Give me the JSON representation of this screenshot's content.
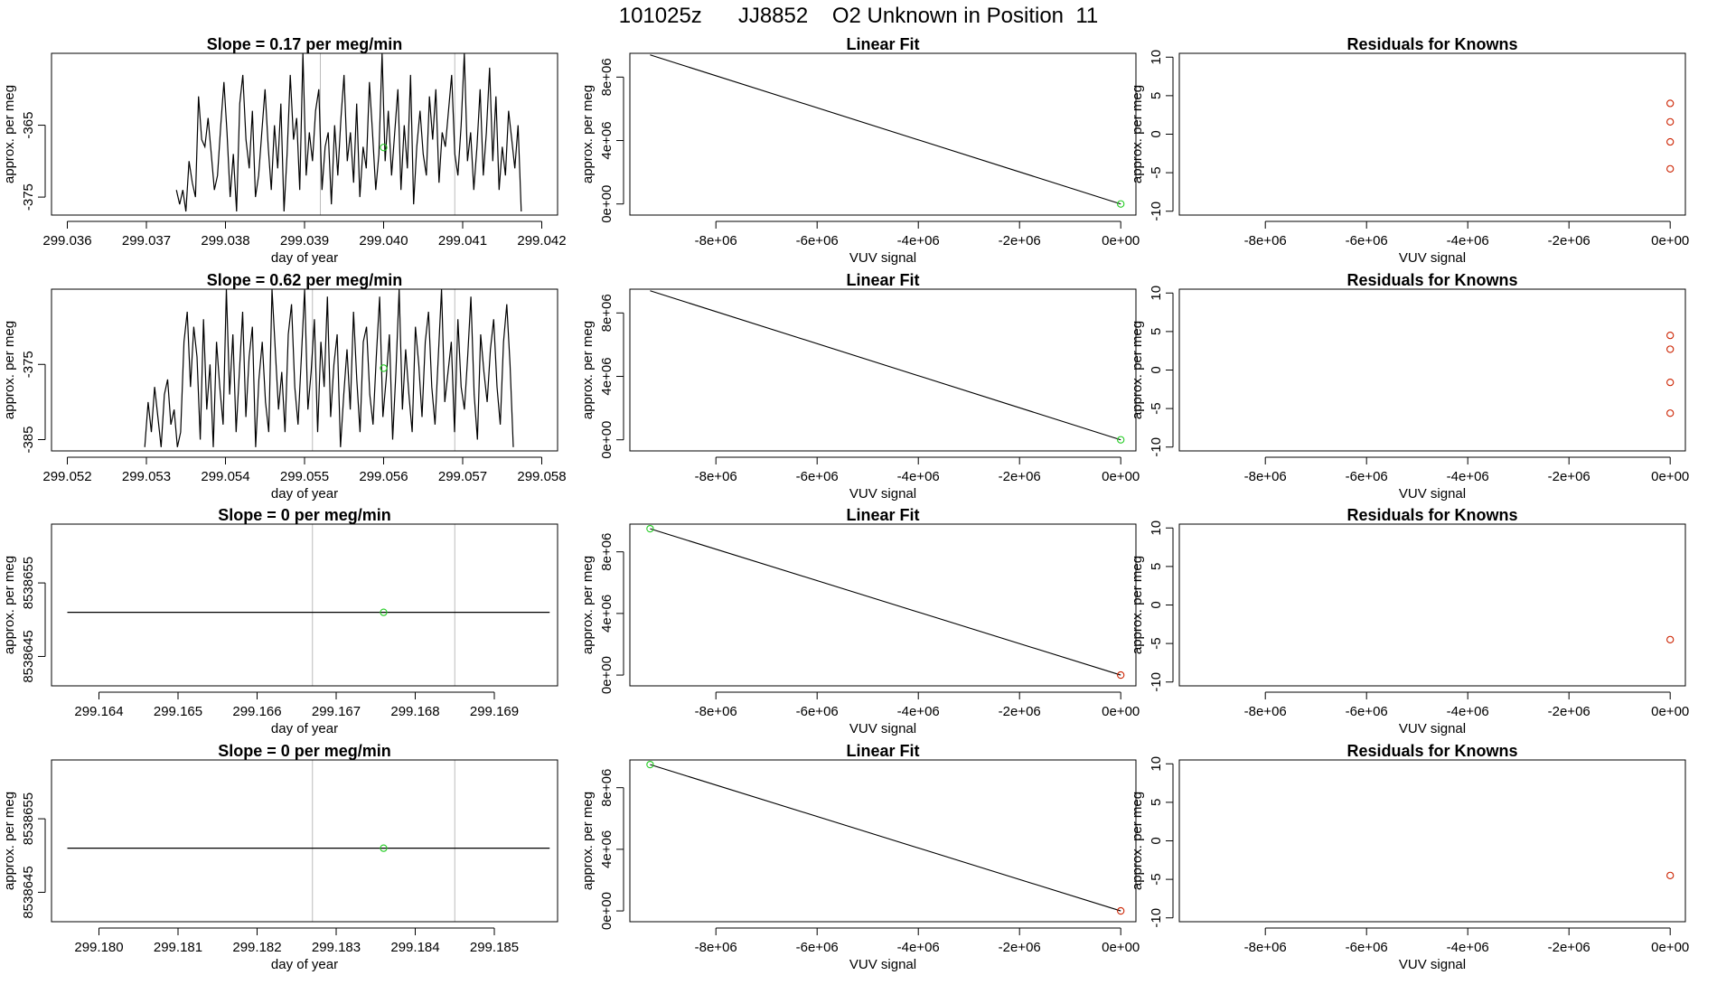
{
  "page": {
    "title": "101025z      JJ8852    O2 Unknown in Position  11"
  },
  "colors": {
    "line": "#000000",
    "unknown_point": "#22cc22",
    "known_point": "#cc2200",
    "vertical_marker": "#bbbbbb",
    "axis": "#000000"
  },
  "chart_data": [
    {
      "type": "line",
      "row": 0,
      "col": 0,
      "title": "Slope =  0.17  per meg/min",
      "xlabel": "day of year",
      "ylabel": "approx. per meg",
      "xlim": [
        299.0358,
        299.0422
      ],
      "ylim": [
        -377.5,
        -355
      ],
      "xticks": [
        299.036,
        299.037,
        299.038,
        299.039,
        299.04,
        299.041,
        299.042
      ],
      "xtick_labels": [
        "299.036",
        "299.037",
        "299.038",
        "299.039",
        "299.040",
        "299.041",
        "299.042"
      ],
      "yticks": [
        -365,
        -375
      ],
      "ytick_labels": [
        "-365",
        "-375"
      ],
      "vlines": [
        299.0392,
        299.0409
      ],
      "point": {
        "x": 299.04,
        "y": -368.1
      },
      "x_start": 299.03738,
      "x_end": 299.04174,
      "series_y": [
        -374,
        -376,
        -374,
        -377,
        -370,
        -373,
        -375,
        -361,
        -367,
        -368,
        -364,
        -369,
        -374,
        -372,
        -365,
        -359,
        -366,
        -375,
        -369,
        -377,
        -362,
        -358,
        -367,
        -371,
        -363,
        -375,
        -372,
        -366,
        -360,
        -368,
        -374,
        -365,
        -371,
        -362,
        -377,
        -369,
        -358,
        -367,
        -364,
        -374,
        -355,
        -372,
        -366,
        -370,
        -363,
        -360,
        -374,
        -368,
        -366,
        -376,
        -365,
        -372,
        -364,
        -358,
        -370,
        -366,
        -373,
        -362,
        -375,
        -368,
        -371,
        -359,
        -366,
        -374,
        -369,
        -355,
        -370,
        -363,
        -372,
        -366,
        -360,
        -374,
        -365,
        -371,
        -358,
        -376,
        -368,
        -363,
        -369,
        -372,
        -361,
        -367,
        -360,
        -373,
        -366,
        -368,
        -363,
        -358,
        -369,
        -372,
        -365,
        -355,
        -370,
        -366,
        -374,
        -368,
        -360,
        -372,
        -366,
        -357,
        -370,
        -361,
        -374,
        -368,
        -372,
        -363,
        -367,
        -371,
        -365,
        -377
      ]
    },
    {
      "type": "line",
      "row": 0,
      "col": 1,
      "title": "Linear Fit",
      "xlabel": "VUV signal",
      "ylabel": "approx. per meg",
      "xlim": [
        -9700000,
        300000
      ],
      "ylim": [
        -700000,
        9500000
      ],
      "xticks": [
        -8000000,
        -6000000,
        -4000000,
        -2000000,
        0
      ],
      "xtick_labels": [
        "-8e+06",
        "-6e+06",
        "-4e+06",
        "-2e+06",
        "0e+00"
      ],
      "yticks": [
        0,
        4000000,
        8000000
      ],
      "ytick_labels": [
        "0e+00",
        "4e+06",
        "8e+06"
      ],
      "fit_line": [
        [
          -9300000,
          9400000
        ],
        [
          0,
          0
        ]
      ],
      "points": [
        {
          "x": 0,
          "y": 0,
          "color": "#22cc22"
        }
      ]
    },
    {
      "type": "scatter",
      "row": 0,
      "col": 2,
      "title": "Residuals for Knowns",
      "xlabel": "VUV signal",
      "ylabel": "approx. per meg",
      "xlim": [
        -9700000,
        300000
      ],
      "ylim": [
        -10.5,
        10.5
      ],
      "xticks": [
        -8000000,
        -6000000,
        -4000000,
        -2000000,
        0
      ],
      "xtick_labels": [
        "-8e+06",
        "-6e+06",
        "-4e+06",
        "-2e+06",
        "0e+00"
      ],
      "yticks": [
        -10,
        -5,
        0,
        5,
        10
      ],
      "ytick_labels": [
        "-10",
        "-5",
        "0",
        "5",
        "10"
      ],
      "points": [
        {
          "x": 0,
          "y": 4.0
        },
        {
          "x": 0,
          "y": 1.6
        },
        {
          "x": 0,
          "y": -1.0
        },
        {
          "x": 0,
          "y": -4.5
        }
      ]
    },
    {
      "type": "line",
      "row": 1,
      "col": 0,
      "title": "Slope =  0.62  per meg/min",
      "xlabel": "day of year",
      "ylabel": "approx. per meg",
      "xlim": [
        299.0518,
        299.0582
      ],
      "ylim": [
        -386.5,
        -365
      ],
      "xticks": [
        299.052,
        299.053,
        299.054,
        299.055,
        299.056,
        299.057,
        299.058
      ],
      "xtick_labels": [
        "299.052",
        "299.053",
        "299.054",
        "299.055",
        "299.056",
        "299.057",
        "299.058"
      ],
      "yticks": [
        -375,
        -385
      ],
      "ytick_labels": [
        "-375",
        "-385"
      ],
      "vlines": [
        299.0551,
        299.0569
      ],
      "point": {
        "x": 299.056,
        "y": -375.5
      },
      "x_start": 299.05298,
      "x_end": 299.05764,
      "series_y": [
        -386,
        -380,
        -384,
        -378,
        -382,
        -386,
        -379,
        -377,
        -383,
        -381,
        -386,
        -384,
        -372,
        -368,
        -378,
        -370,
        -374,
        -385,
        -369,
        -381,
        -375,
        -386,
        -372,
        -378,
        -383,
        -365,
        -379,
        -371,
        -384,
        -376,
        -368,
        -382,
        -374,
        -370,
        -386,
        -377,
        -372,
        -380,
        -384,
        -365,
        -373,
        -381,
        -376,
        -384,
        -371,
        -367,
        -378,
        -383,
        -374,
        -365,
        -381,
        -376,
        -369,
        -384,
        -372,
        -378,
        -366,
        -382,
        -375,
        -371,
        -386,
        -379,
        -373,
        -381,
        -368,
        -377,
        -384,
        -372,
        -370,
        -379,
        -383,
        -374,
        -366,
        -382,
        -377,
        -371,
        -385,
        -376,
        -365,
        -381,
        -373,
        -379,
        -384,
        -370,
        -375,
        -382,
        -372,
        -368,
        -378,
        -383,
        -374,
        -365,
        -380,
        -376,
        -372,
        -384,
        -369,
        -378,
        -381,
        -374,
        -366,
        -379,
        -385,
        -371,
        -376,
        -380,
        -373,
        -369,
        -378,
        -383,
        -372,
        -367,
        -375,
        -386
      ]
    },
    {
      "type": "line",
      "row": 1,
      "col": 1,
      "title": "Linear Fit",
      "xlabel": "VUV signal",
      "ylabel": "approx. per meg",
      "xlim": [
        -9700000,
        300000
      ],
      "ylim": [
        -700000,
        9500000
      ],
      "xticks": [
        -8000000,
        -6000000,
        -4000000,
        -2000000,
        0
      ],
      "xtick_labels": [
        "-8e+06",
        "-6e+06",
        "-4e+06",
        "-2e+06",
        "0e+00"
      ],
      "yticks": [
        0,
        4000000,
        8000000
      ],
      "ytick_labels": [
        "0e+00",
        "4e+06",
        "8e+06"
      ],
      "fit_line": [
        [
          -9300000,
          9400000
        ],
        [
          0,
          0
        ]
      ],
      "points": [
        {
          "x": 0,
          "y": 0,
          "color": "#22cc22"
        }
      ]
    },
    {
      "type": "scatter",
      "row": 1,
      "col": 2,
      "title": "Residuals for Knowns",
      "xlabel": "VUV signal",
      "ylabel": "approx. per meg",
      "xlim": [
        -9700000,
        300000
      ],
      "ylim": [
        -10.5,
        10.5
      ],
      "xticks": [
        -8000000,
        -6000000,
        -4000000,
        -2000000,
        0
      ],
      "xtick_labels": [
        "-8e+06",
        "-6e+06",
        "-4e+06",
        "-2e+06",
        "0e+00"
      ],
      "yticks": [
        -10,
        -5,
        0,
        5,
        10
      ],
      "ytick_labels": [
        "-10",
        "-5",
        "0",
        "5",
        "10"
      ],
      "points": [
        {
          "x": 0,
          "y": 4.5
        },
        {
          "x": 0,
          "y": 2.7
        },
        {
          "x": 0,
          "y": -1.6
        },
        {
          "x": 0,
          "y": -5.6
        }
      ]
    },
    {
      "type": "line",
      "row": 2,
      "col": 0,
      "title": "Slope =  0  per meg/min",
      "xlabel": "day of year",
      "ylabel": "approx. per meg",
      "xlim": [
        299.1634,
        299.1698
      ],
      "ylim": [
        8538641,
        8538663
      ],
      "xticks": [
        299.164,
        299.165,
        299.166,
        299.167,
        299.168,
        299.169
      ],
      "xtick_labels": [
        "299.164",
        "299.165",
        "299.166",
        "299.167",
        "299.168",
        "299.169"
      ],
      "yticks": [
        8538645,
        8538655
      ],
      "ytick_labels": [
        "8538645",
        "8538655"
      ],
      "vlines": [
        299.1667,
        299.1685
      ],
      "point": {
        "x": 299.1676,
        "y": 8538651
      },
      "flat_line": {
        "x": [
          299.1636,
          299.1697
        ],
        "y": 8538651
      }
    },
    {
      "type": "line",
      "row": 2,
      "col": 1,
      "title": "Linear Fit",
      "xlabel": "VUV signal",
      "ylabel": "approx. per meg",
      "xlim": [
        -9700000,
        300000
      ],
      "ylim": [
        -700000,
        9800000
      ],
      "xticks": [
        -8000000,
        -6000000,
        -4000000,
        -2000000,
        0
      ],
      "xtick_labels": [
        "-8e+06",
        "-6e+06",
        "-4e+06",
        "-2e+06",
        "0e+00"
      ],
      "yticks": [
        0,
        4000000,
        8000000
      ],
      "ytick_labels": [
        "0e+00",
        "4e+06",
        "8e+06"
      ],
      "fit_line": [
        [
          -9300000,
          9500000
        ],
        [
          0,
          0
        ]
      ],
      "points": [
        {
          "x": -9300000,
          "y": 9500000,
          "color": "#22cc22"
        },
        {
          "x": 0,
          "y": 0,
          "color": "#cc2200"
        }
      ]
    },
    {
      "type": "scatter",
      "row": 2,
      "col": 2,
      "title": "Residuals for Knowns",
      "xlabel": "VUV signal",
      "ylabel": "approx. per meg",
      "xlim": [
        -9700000,
        300000
      ],
      "ylim": [
        -10.5,
        10.5
      ],
      "xticks": [
        -8000000,
        -6000000,
        -4000000,
        -2000000,
        0
      ],
      "xtick_labels": [
        "-8e+06",
        "-6e+06",
        "-4e+06",
        "-2e+06",
        "0e+00"
      ],
      "yticks": [
        -10,
        -5,
        0,
        5,
        10
      ],
      "ytick_labels": [
        "-10",
        "-5",
        "0",
        "5",
        "10"
      ],
      "points": [
        {
          "x": 0,
          "y": -4.5
        }
      ]
    },
    {
      "type": "line",
      "row": 3,
      "col": 0,
      "title": "Slope =  0  per meg/min",
      "xlabel": "day of year",
      "ylabel": "approx. per meg",
      "xlim": [
        299.1794,
        299.1858
      ],
      "ylim": [
        8538641,
        8538663
      ],
      "xticks": [
        299.18,
        299.181,
        299.182,
        299.183,
        299.184,
        299.185
      ],
      "xtick_labels": [
        "299.180",
        "299.181",
        "299.182",
        "299.183",
        "299.184",
        "299.185"
      ],
      "yticks": [
        8538645,
        8538655
      ],
      "ytick_labels": [
        "8538645",
        "8538655"
      ],
      "vlines": [
        299.1827,
        299.1845
      ],
      "point": {
        "x": 299.1836,
        "y": 8538651
      },
      "flat_line": {
        "x": [
          299.1796,
          299.1857
        ],
        "y": 8538651
      }
    },
    {
      "type": "line",
      "row": 3,
      "col": 1,
      "title": "Linear Fit",
      "xlabel": "VUV signal",
      "ylabel": "approx. per meg",
      "xlim": [
        -9700000,
        300000
      ],
      "ylim": [
        -700000,
        9800000
      ],
      "xticks": [
        -8000000,
        -6000000,
        -4000000,
        -2000000,
        0
      ],
      "xtick_labels": [
        "-8e+06",
        "-6e+06",
        "-4e+06",
        "-2e+06",
        "0e+00"
      ],
      "yticks": [
        0,
        4000000,
        8000000
      ],
      "ytick_labels": [
        "0e+00",
        "4e+06",
        "8e+06"
      ],
      "fit_line": [
        [
          -9300000,
          9500000
        ],
        [
          0,
          0
        ]
      ],
      "points": [
        {
          "x": -9300000,
          "y": 9500000,
          "color": "#22cc22"
        },
        {
          "x": 0,
          "y": 0,
          "color": "#cc2200"
        }
      ]
    },
    {
      "type": "scatter",
      "row": 3,
      "col": 2,
      "title": "Residuals for Knowns",
      "xlabel": "VUV signal",
      "ylabel": "approx. per meg",
      "xlim": [
        -9700000,
        300000
      ],
      "ylim": [
        -10.5,
        10.5
      ],
      "xticks": [
        -8000000,
        -6000000,
        -4000000,
        -2000000,
        0
      ],
      "xtick_labels": [
        "-8e+06",
        "-6e+06",
        "-4e+06",
        "-2e+06",
        "0e+00"
      ],
      "yticks": [
        -10,
        -5,
        0,
        5,
        10
      ],
      "ytick_labels": [
        "-10",
        "-5",
        "0",
        "5",
        "10"
      ],
      "points": [
        {
          "x": 0,
          "y": -4.5
        }
      ]
    }
  ]
}
